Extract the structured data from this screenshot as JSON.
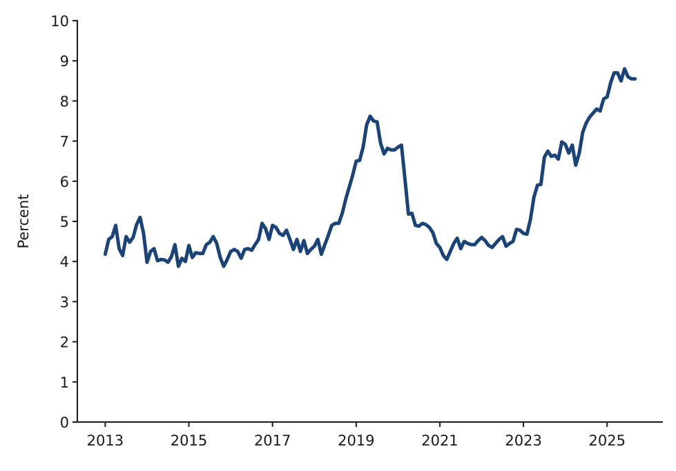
{
  "chart_data": {
    "type": "line",
    "title": "",
    "xlabel": "",
    "ylabel": "Percent",
    "ylim": [
      0,
      10
    ],
    "xlim": [
      "2012-05",
      "2026-05"
    ],
    "yticks": [
      "0",
      "1",
      "2",
      "3",
      "4",
      "5",
      "6",
      "7",
      "8",
      "9",
      "10"
    ],
    "xticks": [
      "2013",
      "2015",
      "2017",
      "2019",
      "2021",
      "2023",
      "2025"
    ],
    "grid": false,
    "legend": "none",
    "series": [
      {
        "color": "#1a4378",
        "x": [
          "2013-01",
          "2013-02",
          "2013-03",
          "2013-04",
          "2013-05",
          "2013-06",
          "2013-07",
          "2013-08",
          "2013-09",
          "2013-10",
          "2013-11",
          "2013-12",
          "2014-01",
          "2014-02",
          "2014-03",
          "2014-04",
          "2014-05",
          "2014-06",
          "2014-07",
          "2014-08",
          "2014-09",
          "2014-10",
          "2014-11",
          "2014-12",
          "2015-01",
          "2015-02",
          "2015-03",
          "2015-04",
          "2015-05",
          "2015-06",
          "2015-07",
          "2015-08",
          "2015-09",
          "2015-10",
          "2015-11",
          "2015-12",
          "2016-01",
          "2016-02",
          "2016-03",
          "2016-04",
          "2016-05",
          "2016-06",
          "2016-07",
          "2016-08",
          "2016-09",
          "2016-10",
          "2016-11",
          "2016-12",
          "2017-01",
          "2017-02",
          "2017-03",
          "2017-04",
          "2017-05",
          "2017-06",
          "2017-07",
          "2017-08",
          "2017-09",
          "2017-10",
          "2017-11",
          "2017-12",
          "2018-01",
          "2018-02",
          "2018-03",
          "2018-04",
          "2018-05",
          "2018-06",
          "2018-07",
          "2018-08",
          "2018-09",
          "2018-10",
          "2018-11",
          "2018-12",
          "2019-01",
          "2019-02",
          "2019-03",
          "2019-04",
          "2019-05",
          "2019-06",
          "2019-07",
          "2019-08",
          "2019-09",
          "2019-10",
          "2019-11",
          "2019-12",
          "2020-01",
          "2020-02",
          "2020-03",
          "2020-04",
          "2020-05",
          "2020-06",
          "2020-07",
          "2020-08",
          "2020-09",
          "2020-10",
          "2020-11",
          "2020-12",
          "2021-01",
          "2021-02",
          "2021-03",
          "2021-04",
          "2021-05",
          "2021-06",
          "2021-07",
          "2021-08",
          "2021-09",
          "2021-10",
          "2021-11",
          "2021-12",
          "2022-01",
          "2022-02",
          "2022-03",
          "2022-04",
          "2022-05",
          "2022-06",
          "2022-07",
          "2022-08",
          "2022-09",
          "2022-10",
          "2022-11",
          "2022-12",
          "2023-01",
          "2023-02",
          "2023-03",
          "2023-04",
          "2023-05",
          "2023-06",
          "2023-07",
          "2023-08",
          "2023-09",
          "2023-10",
          "2023-11",
          "2023-12",
          "2024-01",
          "2024-02",
          "2024-03",
          "2024-04",
          "2024-05",
          "2024-06",
          "2024-07",
          "2024-08",
          "2024-09",
          "2024-10",
          "2024-11",
          "2024-12",
          "2025-01",
          "2025-02",
          "2025-03",
          "2025-04",
          "2025-05",
          "2025-06",
          "2025-07",
          "2025-08",
          "2025-09"
        ],
        "values": [
          4.18,
          4.55,
          4.62,
          4.9,
          4.32,
          4.15,
          4.62,
          4.48,
          4.6,
          4.92,
          5.1,
          4.7,
          3.98,
          4.25,
          4.32,
          4.02,
          4.05,
          4.04,
          3.98,
          4.12,
          4.42,
          3.88,
          4.08,
          4.0,
          4.4,
          4.1,
          4.22,
          4.2,
          4.2,
          4.42,
          4.48,
          4.62,
          4.45,
          4.1,
          3.88,
          4.05,
          4.25,
          4.3,
          4.25,
          4.08,
          4.3,
          4.32,
          4.28,
          4.42,
          4.55,
          4.95,
          4.82,
          4.55,
          4.9,
          4.85,
          4.7,
          4.65,
          4.78,
          4.55,
          4.3,
          4.55,
          4.25,
          4.52,
          4.2,
          4.3,
          4.38,
          4.55,
          4.18,
          4.42,
          4.65,
          4.9,
          4.95,
          4.95,
          5.2,
          5.55,
          5.85,
          6.15,
          6.5,
          6.52,
          6.85,
          7.4,
          7.62,
          7.5,
          7.48,
          6.95,
          6.68,
          6.82,
          6.78,
          6.78,
          6.85,
          6.9,
          6.05,
          5.18,
          5.2,
          4.9,
          4.88,
          4.95,
          4.92,
          4.85,
          4.72,
          4.45,
          4.35,
          4.15,
          4.05,
          4.25,
          4.45,
          4.58,
          4.32,
          4.5,
          4.45,
          4.42,
          4.42,
          4.52,
          4.6,
          4.52,
          4.4,
          4.35,
          4.45,
          4.55,
          4.62,
          4.38,
          4.45,
          4.5,
          4.8,
          4.78,
          4.7,
          4.68,
          5.05,
          5.6,
          5.9,
          5.92,
          6.6,
          6.75,
          6.62,
          6.65,
          6.55,
          6.98,
          6.92,
          6.7,
          6.9,
          6.4,
          6.7,
          7.22,
          7.45,
          7.6,
          7.7,
          7.8,
          7.75,
          8.05,
          8.1,
          8.45,
          8.7,
          8.7,
          8.5,
          8.8,
          8.6,
          8.55,
          8.55
        ]
      }
    ]
  }
}
